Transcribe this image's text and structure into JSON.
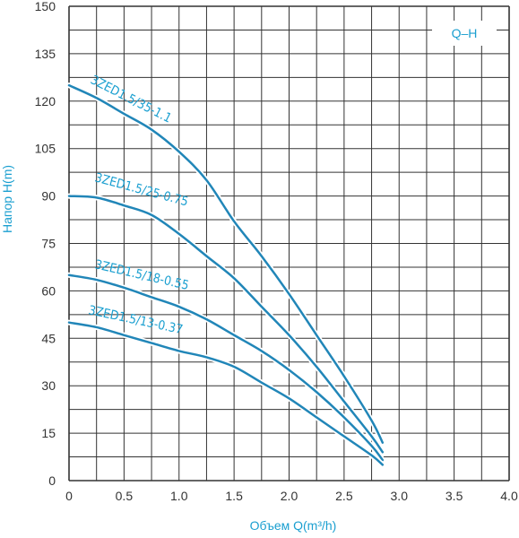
{
  "chart_data": {
    "type": "line",
    "title": "",
    "legend_box": "Q–H",
    "xlabel": "Объем Q(m³/h)",
    "ylabel": "Напор H(m)",
    "xlim": [
      0,
      4.0
    ],
    "ylim": [
      0,
      150
    ],
    "xticks": [
      "0",
      "0.5",
      "1.0",
      "1.5",
      "2.0",
      "2.5",
      "3.0",
      "3.5",
      "4.0"
    ],
    "yticks": [
      "0",
      "15",
      "30",
      "45",
      "60",
      "75",
      "90",
      "105",
      "120",
      "135",
      "150"
    ],
    "grid": true,
    "series": [
      {
        "name": "3ZED1.5/35-1.1",
        "x": [
          0,
          0.25,
          0.5,
          0.75,
          1.0,
          1.25,
          1.5,
          1.75,
          2.0,
          2.25,
          2.5,
          2.75,
          2.85
        ],
        "y": [
          125,
          121,
          116,
          111,
          104,
          95,
          82,
          71,
          59,
          46,
          33,
          19,
          12
        ]
      },
      {
        "name": "3ZED1.5/25-0.75",
        "x": [
          0,
          0.25,
          0.5,
          0.75,
          1.0,
          1.25,
          1.5,
          1.75,
          2.0,
          2.25,
          2.5,
          2.75,
          2.85
        ],
        "y": [
          90,
          89.5,
          87,
          84,
          78,
          71,
          64,
          55,
          46,
          36,
          25,
          14,
          9
        ]
      },
      {
        "name": "3ZED1.5/18-0.55",
        "x": [
          0,
          0.25,
          0.5,
          0.75,
          1.0,
          1.25,
          1.5,
          1.75,
          2.0,
          2.25,
          2.5,
          2.75,
          2.85
        ],
        "y": [
          65,
          63.5,
          61,
          58,
          55,
          51,
          46,
          41,
          35,
          28,
          20,
          11,
          6.5
        ]
      },
      {
        "name": "3ZED1.5/13-0.37",
        "x": [
          0,
          0.25,
          0.5,
          0.75,
          1.0,
          1.25,
          1.5,
          1.75,
          2.0,
          2.25,
          2.5,
          2.75,
          2.85
        ],
        "y": [
          50,
          48.5,
          46,
          43.5,
          41,
          39,
          36,
          31,
          26,
          20,
          14,
          8,
          5
        ]
      }
    ]
  },
  "colors": {
    "curve": "#2186b8",
    "label": "#1a9fd0",
    "grid": "#333333",
    "tick_text": "#333333"
  }
}
